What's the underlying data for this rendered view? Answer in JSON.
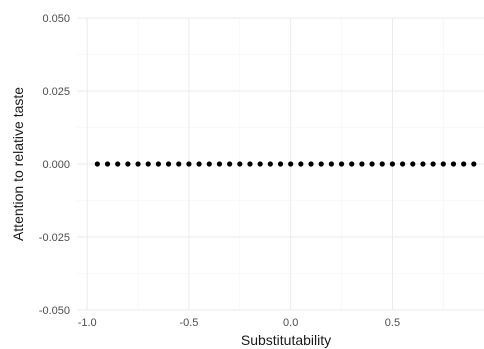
{
  "chart_data": {
    "type": "scatter",
    "title": "",
    "xlabel": "Substitutability",
    "ylabel": "Attention to relative taste",
    "xlim": [
      -1.05,
      0.95
    ],
    "ylim": [
      -0.05,
      0.05
    ],
    "x_ticks": [
      -1.0,
      -0.5,
      0.0,
      0.5
    ],
    "x_tick_labels": [
      "-1.0",
      "-0.5",
      "0.0",
      "0.5"
    ],
    "y_ticks": [
      -0.05,
      -0.025,
      0.0,
      0.025,
      0.05
    ],
    "y_tick_labels": [
      "-0.050",
      "-0.025",
      "0.000",
      "0.025",
      "0.050"
    ],
    "grid": true,
    "point_color": "#000000",
    "series": [
      {
        "x": [
          -0.95,
          -0.9,
          -0.85,
          -0.8,
          -0.75,
          -0.7,
          -0.65,
          -0.6,
          -0.55,
          -0.5,
          -0.45,
          -0.4,
          -0.35,
          -0.3,
          -0.25,
          -0.2,
          -0.15,
          -0.1,
          -0.05,
          0.0,
          0.05,
          0.1,
          0.15,
          0.2,
          0.25,
          0.3,
          0.35,
          0.4,
          0.45,
          0.5,
          0.55,
          0.6,
          0.65,
          0.7,
          0.75,
          0.8,
          0.85,
          0.9
        ],
        "y": [
          0,
          0,
          0,
          0,
          0,
          0,
          0,
          0,
          0,
          0,
          0,
          0,
          0,
          0,
          0,
          0,
          0,
          0,
          0,
          0,
          0,
          0,
          0,
          0,
          0,
          0,
          0,
          0,
          0,
          0,
          0,
          0,
          0,
          0,
          0,
          0,
          0,
          0
        ]
      }
    ]
  }
}
